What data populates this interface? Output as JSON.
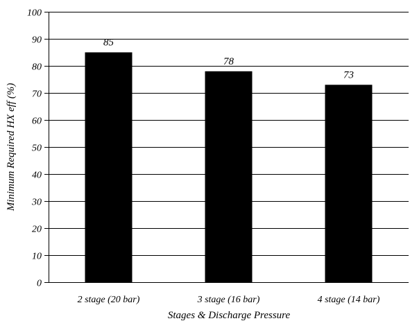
{
  "chart_data": {
    "type": "bar",
    "title": "",
    "categories": [
      "2 stage (20 bar)",
      "3 stage (16 bar)",
      "4 stage (14 bar)"
    ],
    "values": [
      85,
      78,
      73
    ],
    "data_labels": [
      "85",
      "78",
      "73"
    ],
    "xlabel": "Stages & Discharge Pressure",
    "ylabel": "Minimum Required  HX eff (%)",
    "ylim": [
      0,
      100
    ],
    "yticks": [
      0,
      10,
      20,
      30,
      40,
      50,
      60,
      70,
      80,
      90,
      100
    ],
    "grid": true,
    "legend": "none",
    "colors": {
      "bar": "#000000",
      "grid": "#000000",
      "background": "#ffffff"
    }
  }
}
